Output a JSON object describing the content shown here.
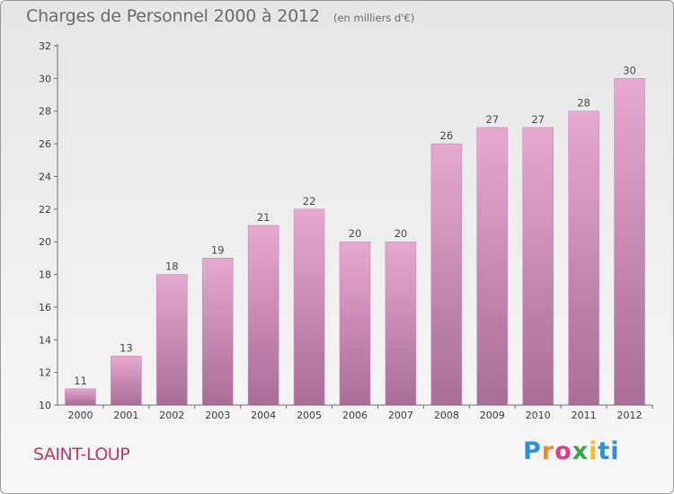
{
  "header": {
    "title": "Charges de Personnel 2000 à 2012",
    "subtitle": "(en milliers d'€)"
  },
  "location": "SAINT-LOUP",
  "logo": {
    "text": "Proxiti",
    "letters": [
      "P",
      "r",
      "o",
      "x",
      "i",
      "ti"
    ]
  },
  "colors": {
    "bar_top": "#e6a9d0",
    "bar_bottom": "#a96e96",
    "axis": "#707070",
    "location_text": "#c2366e"
  },
  "chart_data": {
    "type": "bar",
    "title": "Charges de Personnel 2000 à 2012",
    "subtitle": "(en milliers d'€)",
    "categories": [
      "2000",
      "2001",
      "2002",
      "2003",
      "2004",
      "2005",
      "2006",
      "2007",
      "2008",
      "2009",
      "2010",
      "2011",
      "2012"
    ],
    "values": [
      11,
      13,
      18,
      19,
      21,
      22,
      20,
      20,
      26,
      27,
      27,
      28,
      30
    ],
    "ylim": [
      10,
      32
    ],
    "yticks": [
      10,
      12,
      14,
      16,
      18,
      20,
      22,
      24,
      26,
      28,
      30,
      32
    ],
    "grid": false,
    "data_labels": true
  }
}
